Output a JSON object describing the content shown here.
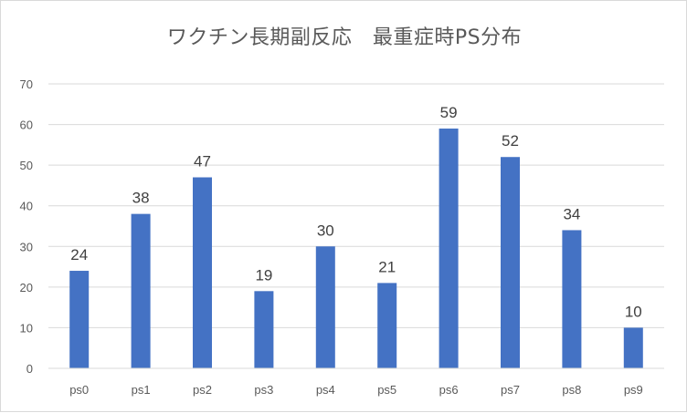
{
  "chart_data": {
    "type": "bar",
    "title": "ワクチン長期副反応　最重症時PS分布",
    "categories": [
      "ps0",
      "ps1",
      "ps2",
      "ps3",
      "ps4",
      "ps5",
      "ps6",
      "ps7",
      "ps8",
      "ps9"
    ],
    "values": [
      24,
      38,
      47,
      19,
      30,
      21,
      59,
      52,
      34,
      10
    ],
    "ylim": [
      0,
      70
    ],
    "yticks": [
      0,
      10,
      20,
      30,
      40,
      50,
      60,
      70
    ],
    "xlabel": "",
    "ylabel": "",
    "grid": true,
    "legend": "none",
    "bar_color": "#4472c4",
    "grid_color": "#d9d9d9"
  }
}
